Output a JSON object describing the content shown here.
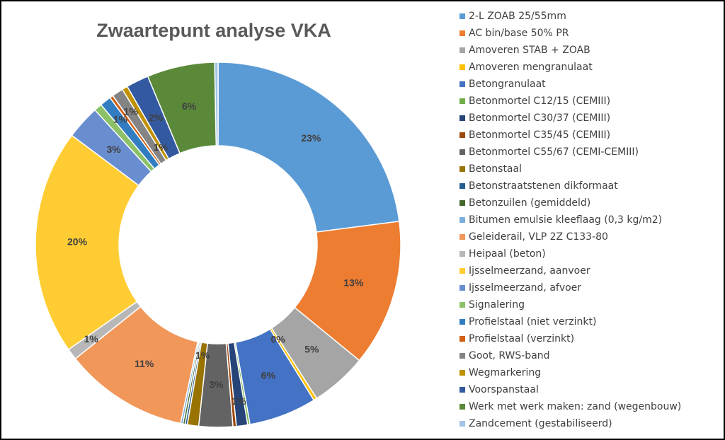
{
  "chart_data": {
    "type": "pie",
    "donut": true,
    "title": "Zwaartepunt analyse VKA",
    "categories": [
      "2-L ZOAB 25/55mm",
      "AC bin/base 50% PR",
      "Amoveren STAB + ZOAB",
      "Amoveren mengranulaat",
      "Betongranulaat",
      "Betonmortel C12/15 (CEMIII)",
      "Betonmortel C30/37 (CEMIII)",
      "Betonmortel C35/45 (CEMIII)",
      "Betonmortel C55/67 (CEMI-CEMIII)",
      "Betonstaal",
      "Betonstraatstenen dikformaat",
      "Betonzuilen (gemiddeld)",
      "Bitumen emulsie kleeflaag (0,3 kg/m2)",
      "Geleiderail, VLP 2Z C133-80",
      "Heipaal (beton)",
      "Ijsselmeerzand, aanvoer",
      "Ijsselmeerzand, afvoer",
      "Signalering",
      "Profielstaal (niet verzinkt)",
      "Profielstaal (verzinkt)",
      "Goot, RWS-band",
      "Wegmarkering",
      "Voorspanstaal",
      "Werk met werk maken: zand (wegenbouw)",
      "Zandcement (gestabiliseerd)"
    ],
    "values": [
      23,
      13,
      5,
      0.3,
      6,
      0.2,
      1,
      0.3,
      3,
      1,
      0.2,
      0.2,
      0.2,
      11,
      1,
      20,
      3,
      0.7,
      1,
      0.3,
      1,
      0.5,
      2,
      6,
      0.3
    ],
    "value_labels": [
      "23%",
      "13%",
      "5%",
      "0%",
      "6%",
      null,
      "1%",
      null,
      "3%",
      "1%",
      null,
      null,
      null,
      "11%",
      "1%",
      "20%",
      "3%",
      null,
      "1%",
      null,
      "1%",
      "1%",
      "2%",
      "6%",
      null
    ],
    "colors": [
      "#5b9bd5",
      "#ed7d31",
      "#a5a5a5",
      "#ffc000",
      "#4472c4",
      "#70ad47",
      "#264478",
      "#9e480e",
      "#636363",
      "#997300",
      "#255e91",
      "#43682b",
      "#7cafdd",
      "#f1975a",
      "#b7b7b7",
      "#ffcd33",
      "#698ed0",
      "#8cc168",
      "#327dc2",
      "#d26012",
      "#848484",
      "#c09100",
      "#335aa1",
      "#5a8a39",
      "#a2c4e6"
    ]
  }
}
